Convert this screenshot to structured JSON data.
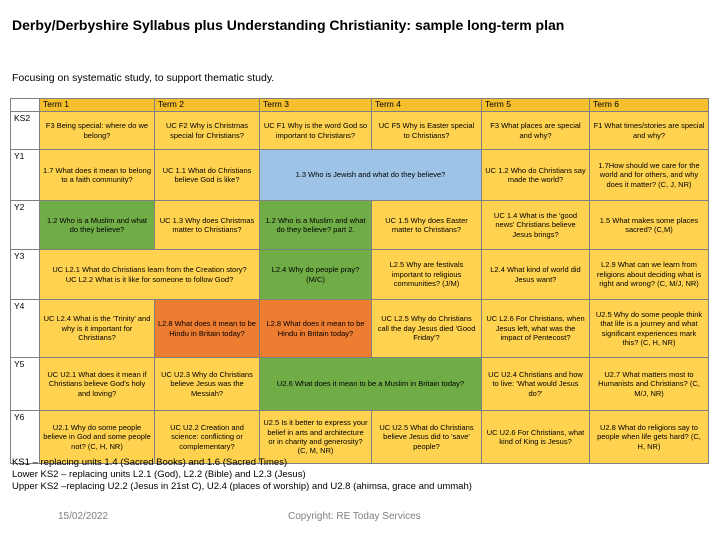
{
  "document": {
    "title": "Derby/Derbyshire Syllabus plus Understanding Christianity: sample long-term plan",
    "subtitle": "Focusing on systematic study, to support thematic study."
  },
  "table": {
    "headers": [
      "Term 1",
      "Term 2",
      "Term 3",
      "Term 4",
      "Term 5",
      "Term 6"
    ],
    "row_labels": [
      "KS2",
      "Y1",
      "Y2",
      "Y3",
      "Y4",
      "Y5",
      "Y6"
    ],
    "cells": {
      "ks2": [
        "F3 Being special: where do we belong?",
        "UC F2 Why is Christmas special for Christians?",
        "UC F1 Why is the word God so important to Christians?",
        "UC F5 Why is Easter special to Christians?",
        "F3 What places are special and why?",
        "F1 What times/stories are special and why?"
      ],
      "y1": [
        "1.7 What does it mean to belong to a faith community?",
        "UC 1.1 What do Christians believe God is like?",
        "1.3 Who is Jewish and what do they believe?",
        "UC 1.2 Who do Christians say made the world?",
        "1.7How should we care for the world and for others, and why does it matter? (C, J, NR)"
      ],
      "y2": [
        "1.2 Who is a Muslim and what do they believe?",
        "UC 1.3 Why does Christmas matter to Christians?",
        "1.2 Who is a Muslim and what do they believe? part 2.",
        "UC 1.5 Why does Easter matter to Christians?",
        "UC 1.4 What is the 'good news' Christians believe Jesus brings?",
        "1.5 What makes some places sacred? (C,M)"
      ],
      "y3": [
        "UC L2.1 What do Christians learn from the Creation story?",
        "UC L2.2 What is it like for someone to follow God?",
        "L2.4 Why do people pray? (M/C)",
        "L2.5 Why are festivals important to religious communities? (J/M)",
        "L2.4 What kind of world did Jesus want?",
        "L2.9 What can we learn from religions about deciding what is right and wrong? (C, M/J, NR)"
      ],
      "y4": [
        "UC L2.4 What is the 'Trinity' and why is it important for Christians?",
        "L2.8 What does it mean to be Hindu in Britain today?",
        "L2.8 What does it mean to be Hindu in Britain today?",
        "UC L2.5 Why do Christians call the day Jesus died 'Good Friday'?",
        "UC L2.6 For Christians, when Jesus left, what was the impact of Pentecost?",
        "U2.5 Why do some people think that life is a journey and what significant experiences mark this? (C, H, NR)"
      ],
      "y5": [
        "UC U2.1 What does it mean if Christians believe God's holy and loving?",
        "UC U2.3 Why do Christians believe Jesus was the Messiah?",
        "U2.6 What does it mean to be a Muslim in Britain today?",
        "UC U2.4 Christians and how to live: 'What would Jesus do?'",
        "U2.7 What matters most to Humanists and Christians? (C, M/J, NR)"
      ],
      "y6": [
        "U2.1 Why do some people believe in God and some people not? (C, H, NR)",
        "UC U2.2 Creation and science: conflicting or complementary?",
        "U2.5 Is it better to express your belief in arts and architecture or in charity and generosity? (C, M, NR)",
        "UC U2.5 What do Christians believe Jesus did to 'save' people?",
        "UC U2.6 For Christians, what kind of King is Jesus?",
        "U2.8 What do religions say to people when life gets hard? (C, H, NR)"
      ]
    }
  },
  "notes": [
    "KS1 – replacing units 1.4 (Sacred Books) and 1.6 (Sacred Times)",
    "Lower KS2 – replacing units L2.1 (God), L2.2 (Bible) and L2.3 (Jesus)",
    "Upper KS2 –replacing U2.2 (Jesus in 21st C), U2.4 (places of worship) and U2.8 (ahimsa, grace and ummah)"
  ],
  "footer": {
    "date": "15/02/2022",
    "copyright": "Copyright: RE Today Services"
  },
  "colors": {
    "header": "#f6bf2e",
    "yellow": "#ffd24f",
    "green": "#70ad47",
    "blue": "#9dc3e6",
    "orange": "#ed7d31"
  }
}
